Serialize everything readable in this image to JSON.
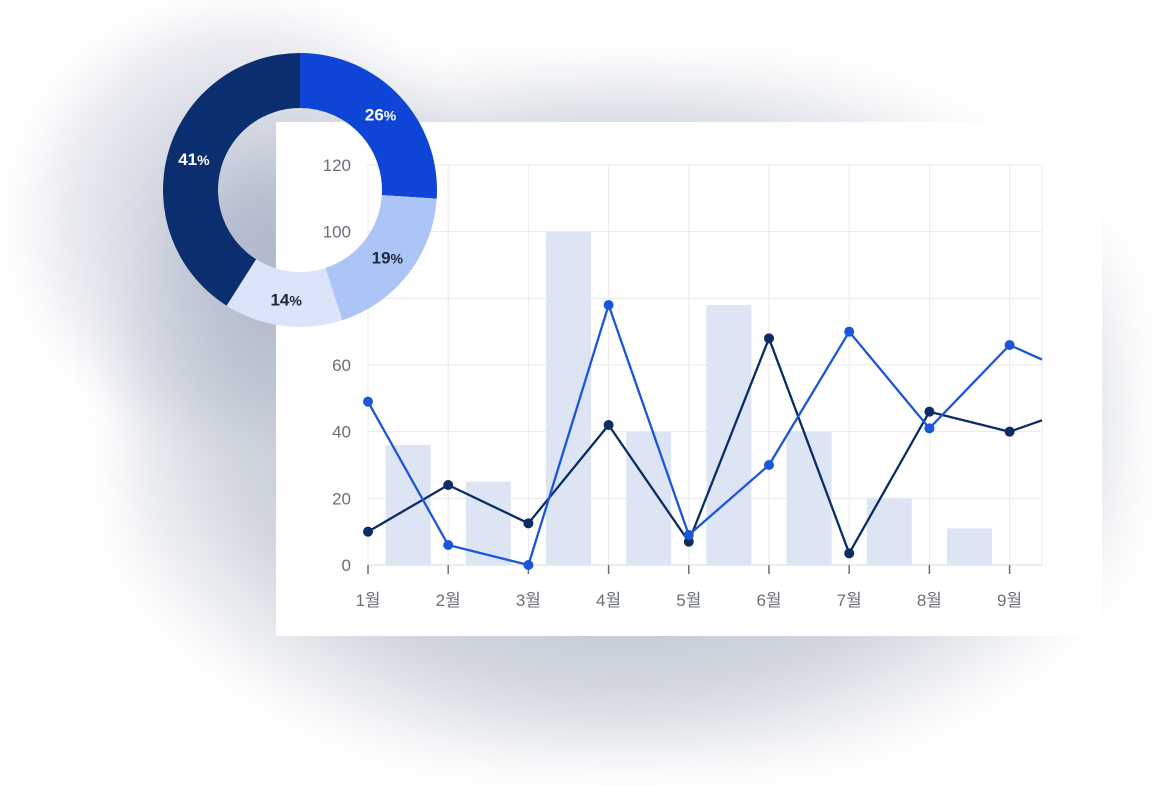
{
  "chart_data": [
    {
      "type": "bar",
      "categories": [
        "1월",
        "2월",
        "3월",
        "4월",
        "5월",
        "6월",
        "7월",
        "8월",
        "9월"
      ],
      "yticks": [
        "0",
        "20",
        "40",
        "60",
        "100",
        "120"
      ],
      "ylim": [
        0,
        120
      ],
      "grid": true,
      "series": [
        {
          "values": [
            null,
            36,
            25,
            100,
            40,
            78,
            40,
            20,
            11
          ],
          "color": "#dde5f5"
        },
        {
          "type": "line",
          "values": [
            10,
            24,
            12.5,
            42,
            7,
            68,
            3.5,
            46,
            40
          ],
          "color": "#0b2d63"
        },
        {
          "type": "line",
          "values": [
            49,
            6,
            0,
            78,
            9,
            30,
            70,
            41,
            66
          ],
          "color": "#1c56d8"
        }
      ]
    },
    {
      "type": "pie",
      "labels": [
        "26",
        "19",
        "14",
        "41"
      ],
      "values": [
        26,
        19,
        14,
        41
      ],
      "unit": "%",
      "colors": [
        "#0e45d6",
        "#adc4f7",
        "#dbe4f8",
        "#0b2f6e"
      ],
      "label_colors": [
        "#ffffff",
        "#1d2838",
        "#1d2838",
        "#ffffff"
      ]
    }
  ]
}
